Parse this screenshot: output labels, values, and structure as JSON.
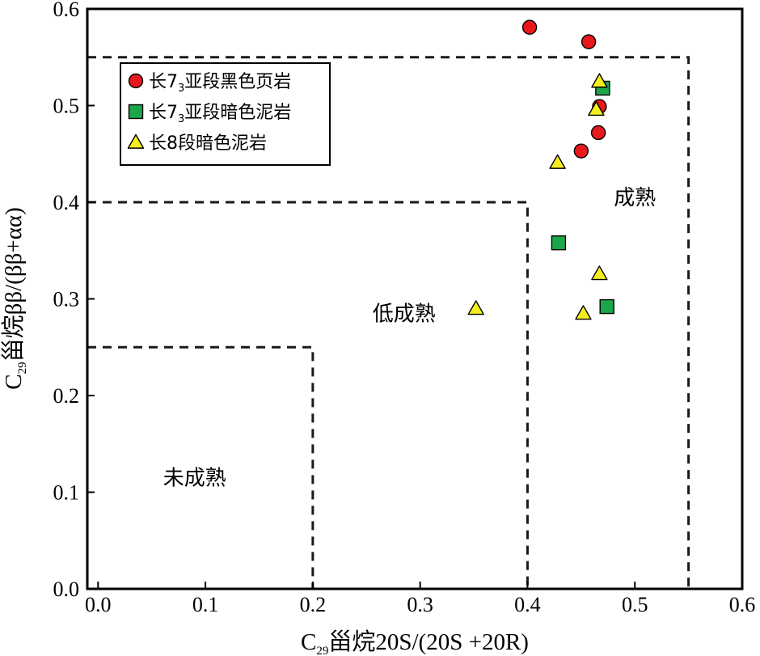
{
  "chart_data": {
    "type": "scatter",
    "xlabel": {
      "pre": "C",
      "sub": "29",
      "post": "甾烷20S/(20S +20R)"
    },
    "ylabel": {
      "pre": "C",
      "sub": "29",
      "post": "甾烷ββ/(ββ+αα)"
    },
    "xlim": [
      -0.01,
      0.6
    ],
    "ylim": [
      0.0,
      0.6
    ],
    "xticks": [
      "0.0",
      "0.1",
      "0.2",
      "0.3",
      "0.4",
      "0.5",
      "0.6"
    ],
    "yticks": [
      "0.0",
      "0.1",
      "0.2",
      "0.3",
      "0.4",
      "0.5",
      "0.6"
    ],
    "grid": false,
    "legend_position": "top-left",
    "regions": [
      {
        "label": "未成熟",
        "x_max": 0.2,
        "y_max": 0.25,
        "label_at": [
          0.09,
          0.115
        ]
      },
      {
        "label": "低成熟",
        "x_max": 0.4,
        "y_max": 0.4,
        "label_at": [
          0.285,
          0.285
        ]
      },
      {
        "label": "成熟",
        "x_max": 0.55,
        "y_max": 0.55,
        "label_at": [
          0.5,
          0.405
        ]
      }
    ],
    "series": [
      {
        "name": {
          "pre": "长7",
          "sub": "3",
          "post": "亚段黑色页岩"
        },
        "marker": "circle",
        "color": "#e8191c",
        "points": [
          [
            0.402,
            0.581
          ],
          [
            0.457,
            0.566
          ],
          [
            0.467,
            0.499
          ],
          [
            0.466,
            0.472
          ],
          [
            0.45,
            0.453
          ]
        ]
      },
      {
        "name": {
          "pre": "长7",
          "sub": "3",
          "post": "亚段暗色泥岩"
        },
        "marker": "square",
        "color": "#1ca64b",
        "points": [
          [
            0.47,
            0.518
          ],
          [
            0.429,
            0.358
          ],
          [
            0.474,
            0.292
          ]
        ]
      },
      {
        "name": {
          "pre": "长8段暗色泥岩",
          "sub": "",
          "post": ""
        },
        "marker": "triangle",
        "color": "#f4ee1e",
        "points": [
          [
            0.467,
            0.525
          ],
          [
            0.464,
            0.496
          ],
          [
            0.428,
            0.441
          ],
          [
            0.467,
            0.326
          ],
          [
            0.452,
            0.285
          ],
          [
            0.352,
            0.29
          ]
        ]
      }
    ]
  }
}
